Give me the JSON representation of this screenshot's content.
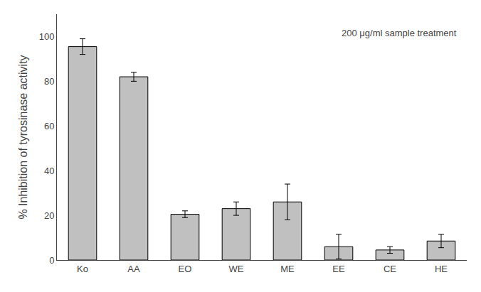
{
  "chart_data": {
    "type": "bar",
    "categories": [
      "Ko",
      "AA",
      "EO",
      "WE",
      "ME",
      "EE",
      "CE",
      "HE"
    ],
    "values": [
      95.5,
      82.0,
      20.5,
      23.0,
      26.0,
      6.0,
      4.5,
      8.5
    ],
    "errors": [
      3.5,
      2.0,
      1.5,
      3.0,
      8.0,
      5.5,
      1.5,
      3.0
    ],
    "color": "#c0c0c0",
    "ylabel": "% Inhibition of tyrosinase activity",
    "annotation": "200 μg/ml sample treatment",
    "ylim": [
      0,
      110
    ],
    "yticks": [
      0,
      20,
      40,
      60,
      80,
      100
    ],
    "grid": false
  }
}
